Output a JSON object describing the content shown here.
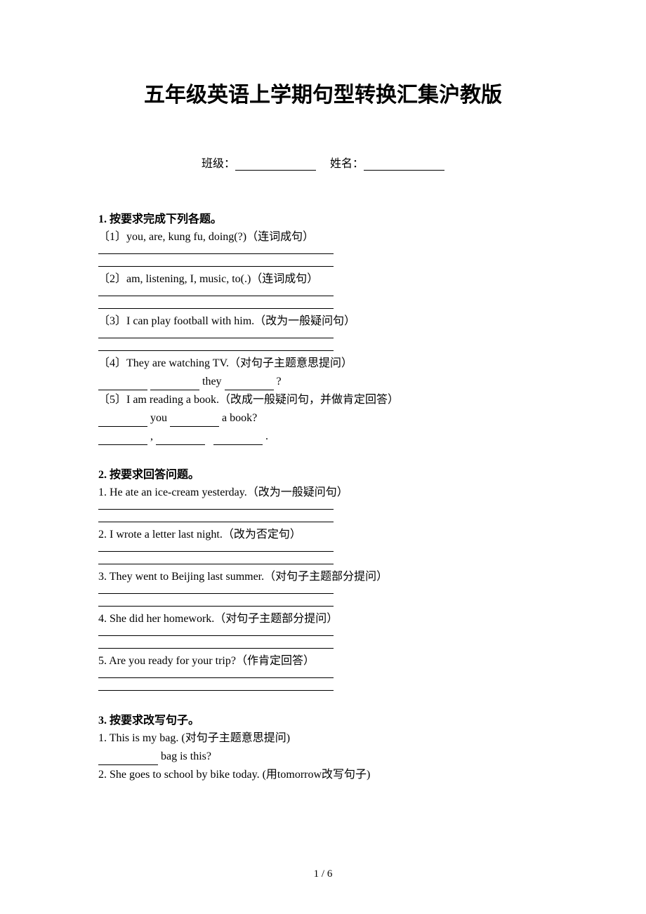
{
  "colors": {
    "background": "#ffffff",
    "text": "#000000",
    "line": "#000000"
  },
  "typography": {
    "title_fontsize": 30,
    "body_fontsize": 16,
    "title_font": "SimHei",
    "body_font": "SimSun"
  },
  "title": "五年级英语上学期句型转换汇集沪教版",
  "info": {
    "class_label": "班级：",
    "name_label": "姓名："
  },
  "sections": [
    {
      "header": "1.  按要求完成下列各题。",
      "items": [
        {
          "text": "〔1〕you, are, kung fu, doing(?)（连词成句）",
          "answer_lines": 2
        },
        {
          "text": "〔2〕am, listening, I, music, to(.)（连词成句）",
          "answer_lines": 2
        },
        {
          "text": "〔3〕I can play football with him.（改为一般疑问句）",
          "answer_lines": 2
        },
        {
          "text": "〔4〕They are watching TV.（对句子主题意思提问）",
          "fill": {
            "parts": [
              "",
              " ",
              " they ",
              " ?"
            ],
            "blanks": [
              0,
              1,
              2
            ]
          }
        },
        {
          "text": "〔5〕I am reading a book.（改成一般疑问句，并做肯定回答）",
          "fill2": true
        }
      ]
    },
    {
      "header": "2.  按要求回答问题。",
      "items": [
        {
          "text": "1. He ate an ice-cream yesterday.（改为一般疑问句）",
          "answer_lines": 2
        },
        {
          "text": "2. I wrote a letter last night.（改为否定句）",
          "answer_lines": 2
        },
        {
          "text": "3. They went to Beijing last summer.（对句子主题部分提问）",
          "answer_lines": 2
        },
        {
          "text": "4. She did her homework.（对句子主题部分提问）",
          "answer_lines": 2
        },
        {
          "text": "5. Are you ready for your trip?（作肯定回答）",
          "answer_lines": 2
        }
      ]
    },
    {
      "header": "3.  按要求改写句子。",
      "items": [
        {
          "text": "1. This is my bag. (对句子主题意思提问)",
          "fill3": true
        },
        {
          "text": "2. She goes to school by bike today. (用tomorrow改写句子)"
        }
      ]
    }
  ],
  "fill_q5": {
    "line1_word1": " you ",
    "line1_word2": " a book?",
    "line2_sep": " , "
  },
  "fill_q3_2": {
    "suffix": " bag is this?"
  },
  "page_number": "1 / 6"
}
